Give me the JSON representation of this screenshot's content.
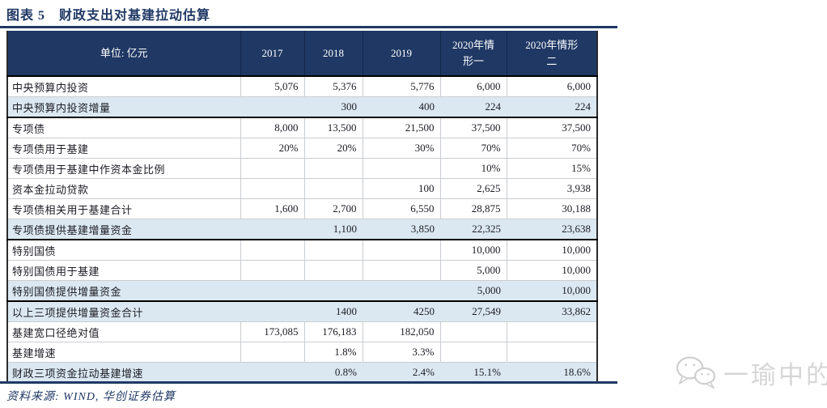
{
  "figure": {
    "title": "图表 5　财政支出对基建拉动估算",
    "source": "资料来源: WIND, 华创证券估算"
  },
  "table": {
    "unit_header": "单位: 亿元",
    "year_columns": [
      "2017",
      "2018",
      "2019",
      "2020年情\n形一",
      "2020年情形\n二"
    ],
    "rows": [
      {
        "label": "中央预算内投资",
        "values": [
          "5,076",
          "5,376",
          "5,776",
          "6,000",
          "6,000"
        ],
        "highlight": false,
        "thick_bottom": false
      },
      {
        "label": "中央预算内投资增量",
        "values": [
          "",
          "300",
          "400",
          "224",
          "224"
        ],
        "highlight": true,
        "thick_bottom": true
      },
      {
        "label": "专项债",
        "values": [
          "8,000",
          "13,500",
          "21,500",
          "37,500",
          "37,500"
        ],
        "highlight": false,
        "thick_bottom": false
      },
      {
        "label": "专项债用于基建",
        "values": [
          "20%",
          "20%",
          "30%",
          "70%",
          "70%"
        ],
        "highlight": false,
        "thick_bottom": false
      },
      {
        "label": "专项债用于基建中作资本金比例",
        "values": [
          "",
          "",
          "",
          "10%",
          "15%"
        ],
        "highlight": false,
        "thick_bottom": false
      },
      {
        "label": "资本金拉动贷款",
        "values": [
          "",
          "",
          "100",
          "2,625",
          "3,938"
        ],
        "highlight": false,
        "thick_bottom": false
      },
      {
        "label": "专项债相关用于基建合计",
        "values": [
          "1,600",
          "2,700",
          "6,550",
          "28,875",
          "30,188"
        ],
        "highlight": false,
        "thick_bottom": false
      },
      {
        "label": "专项债提供基建增量资金",
        "values": [
          "",
          "1,100",
          "3,850",
          "22,325",
          "23,638"
        ],
        "highlight": true,
        "thick_bottom": true
      },
      {
        "label": "特别国债",
        "values": [
          "",
          "",
          "",
          "10,000",
          "10,000"
        ],
        "highlight": false,
        "thick_bottom": false
      },
      {
        "label": "特别国债用于基建",
        "values": [
          "",
          "",
          "",
          "5,000",
          "10,000"
        ],
        "highlight": false,
        "thick_bottom": false
      },
      {
        "label": "特别国债提供增量资金",
        "values": [
          "",
          "",
          "",
          "5,000",
          "10,000"
        ],
        "highlight": true,
        "thick_bottom": true
      },
      {
        "label": "以上三项提供增量资金合计",
        "values": [
          "",
          "1400",
          "4250",
          "27,549",
          "33,862"
        ],
        "highlight": true,
        "thick_bottom": false
      },
      {
        "label": "基建宽口径绝对值",
        "values": [
          "173,085",
          "176,183",
          "182,050",
          "",
          ""
        ],
        "highlight": false,
        "thick_bottom": false
      },
      {
        "label": "基建增速",
        "values": [
          "",
          "1.8%",
          "3.3%",
          "",
          ""
        ],
        "highlight": false,
        "thick_bottom": false
      },
      {
        "label": "财政三项资金拉动基建增速",
        "values": [
          "",
          "0.8%",
          "2.4%",
          "15.1%",
          "18.6%"
        ],
        "highlight": true,
        "thick_bottom": false
      }
    ]
  },
  "watermark": {
    "icon": "wechat-icon",
    "text": "一瑜中的"
  },
  "colors": {
    "header_bg": "#1f3864",
    "row_highlight": "#dbe8f1",
    "rule_blue": "#1f3864",
    "title_ink": "#1f3864",
    "watermark_gray": "#d6d6d6"
  }
}
